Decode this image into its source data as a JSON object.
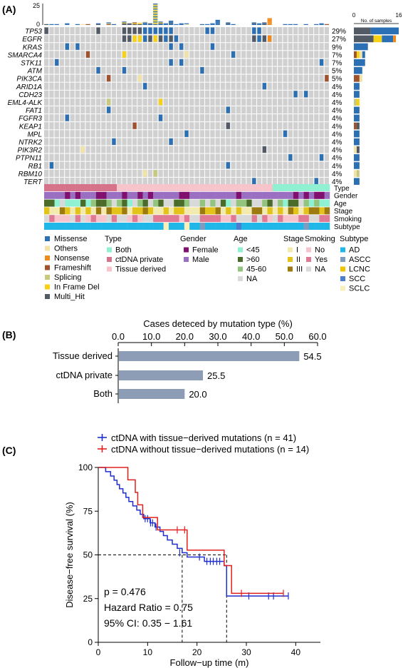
{
  "panel_labels": {
    "a": "(A)",
    "b": "(B)",
    "c": "(C)"
  },
  "oncoprint": {
    "top_axis_ticks": [
      "25",
      "0"
    ],
    "right_axis_title": "No. of samples",
    "right_axis_ticks": [
      "0",
      "16"
    ],
    "genes": [
      "TP53",
      "EGFR",
      "KRAS",
      "SMARCA4",
      "STK11",
      "ATM",
      "PIK3CA",
      "ARID1A",
      "CDH23",
      "EML4-ALK",
      "FAT1",
      "FGFR3",
      "KEAP1",
      "MPL",
      "NTRK2",
      "PIK3R2",
      "PTPN11",
      "RB1",
      "RBM10",
      "TERT"
    ],
    "percentages": [
      "29%",
      "27%",
      "9%",
      "7%",
      "7%",
      "5%",
      "5%",
      "4%",
      "4%",
      "4%",
      "4%",
      "4%",
      "4%",
      "4%",
      "4%",
      "4%",
      "4%",
      "4%",
      "4%",
      "4%"
    ],
    "clinical_tracks": [
      "Type",
      "Gender",
      "Age",
      "Stage",
      "Smoking",
      "Subtype"
    ],
    "mutation_colors": {
      "Missense": "#2b6fb5",
      "Others": "#f2e2a6",
      "Nonsense": "#f08a1c",
      "Frameshift": "#a0522d",
      "Splicing": "#c7c97e",
      "In Frame Del": "#f7d117",
      "Multi_Hit": "#525a66",
      "none": "#d0d0d0"
    }
  },
  "legend": {
    "mutation": {
      "items": [
        {
          "label": "Missense",
          "color": "#2b6fb5"
        },
        {
          "label": "Others",
          "color": "#f2e2a6"
        },
        {
          "label": "Nonsense",
          "color": "#f08a1c"
        },
        {
          "label": "Frameshift",
          "color": "#a0522d"
        },
        {
          "label": "Splicing",
          "color": "#c7c97e"
        },
        {
          "label": "In Frame Del",
          "color": "#f7d117"
        },
        {
          "label": "Multi_Hit",
          "color": "#525a66"
        }
      ]
    },
    "type": {
      "title": "Type",
      "items": [
        {
          "label": "Both",
          "color": "#8ff0d2"
        },
        {
          "label": "ctDNA private",
          "color": "#d6728a"
        },
        {
          "label": "Tissue derived",
          "color": "#f7c4cc"
        }
      ]
    },
    "gender": {
      "title": "Gender",
      "items": [
        {
          "label": "Female",
          "color": "#800f6e"
        },
        {
          "label": "Male",
          "color": "#9a6fc2"
        }
      ]
    },
    "age": {
      "title": "Age",
      "items": [
        {
          "label": "<45",
          "color": "#8ff0d2"
        },
        {
          "label": ">60",
          "color": "#4b6b2a"
        },
        {
          "label": "45-60",
          "color": "#93c47d"
        },
        {
          "label": "NA",
          "color": "#d9d9d9"
        }
      ]
    },
    "stage": {
      "title": "Stage",
      "items": [
        {
          "label": "I",
          "color": "#f3eab0"
        },
        {
          "label": "II",
          "color": "#e3c21a"
        },
        {
          "label": "III",
          "color": "#9c7a10"
        }
      ]
    },
    "smoking": {
      "title": "Smoking",
      "items": [
        {
          "label": "No",
          "color": "#f7c4cc"
        },
        {
          "label": "Yes",
          "color": "#e07a94"
        },
        {
          "label": "NA",
          "color": "#d9d9d9"
        }
      ]
    },
    "subtype": {
      "title": "Subtype",
      "items": [
        {
          "label": "AD",
          "color": "#1fb6e8"
        },
        {
          "label": "ASCC",
          "color": "#7d9cc0"
        },
        {
          "label": "LCNC",
          "color": "#f0c400"
        },
        {
          "label": "SCC",
          "color": "#4a7fd0"
        },
        {
          "label": "SCLC",
          "color": "#f7f0b8"
        }
      ]
    }
  },
  "chart_data": [
    {
      "type": "bar",
      "orientation": "horizontal",
      "title": "Cases deteced by mutation type (%)",
      "categories": [
        "Tissue derived",
        "ctDNA private",
        "Both"
      ],
      "values": [
        54.5,
        25.5,
        20.0
      ],
      "value_labels": [
        "54.5",
        "25.5",
        "20.0"
      ],
      "xticks": [
        "0.0",
        "10.0",
        "20.0",
        "30.0",
        "40.0",
        "50.0",
        "60.0"
      ],
      "xlim": [
        0,
        60
      ],
      "color": "#8d9db5"
    },
    {
      "type": "line",
      "subtype": "kaplan-meier",
      "xlabel": "Follow−up time (m)",
      "ylabel": "Disease−free survival (%)",
      "xticks": [
        "0",
        "10",
        "20",
        "30",
        "40"
      ],
      "yticks": [
        "0",
        "25",
        "50",
        "75",
        "100"
      ],
      "xlim": [
        0,
        45
      ],
      "ylim": [
        0,
        100
      ],
      "median_lines": [
        17,
        26
      ],
      "annotations": [
        "p = 0.476",
        "Hazard Ratio = 0.75",
        "95% CI: 0.35 − 1.61"
      ],
      "series": [
        {
          "name": "ctDNA with tissue−derived mutations (n = 41)",
          "color": "#1f2fcf",
          "steps": [
            [
              0,
              100
            ],
            [
              1.5,
              97.6
            ],
            [
              2.5,
              95.1
            ],
            [
              3.2,
              92.7
            ],
            [
              3.8,
              90.2
            ],
            [
              4.3,
              87.8
            ],
            [
              5,
              85.4
            ],
            [
              5.6,
              82.9
            ],
            [
              6.2,
              80.5
            ],
            [
              7,
              78
            ],
            [
              7.8,
              75.6
            ],
            [
              8.5,
              73.2
            ],
            [
              9.2,
              70.7
            ],
            [
              10.5,
              68.3
            ],
            [
              11.5,
              65.9
            ],
            [
              12.5,
              63.4
            ],
            [
              13.2,
              61
            ],
            [
              14,
              58.5
            ],
            [
              15,
              56.1
            ],
            [
              16,
              53.7
            ],
            [
              17,
              51.2
            ],
            [
              18,
              48.8
            ],
            [
              21.5,
              46.3
            ],
            [
              25.5,
              43.9
            ],
            [
              26,
              26.5
            ],
            [
              38.5,
              26.5
            ]
          ],
          "censors": [
            [
              9.5,
              70.7
            ],
            [
              10,
              70.7
            ],
            [
              10.6,
              68.3
            ],
            [
              11,
              68.3
            ],
            [
              11.7,
              65.9
            ],
            [
              16.5,
              51.2
            ],
            [
              20.5,
              48.8
            ],
            [
              22,
              46.3
            ],
            [
              22.7,
              46.3
            ],
            [
              23.3,
              46.3
            ],
            [
              24,
              46.3
            ],
            [
              24.6,
              46.3
            ],
            [
              30.5,
              26.5
            ],
            [
              34.5,
              26.5
            ],
            [
              35.5,
              26.5
            ],
            [
              38.5,
              26.5
            ]
          ]
        },
        {
          "name": "ctDNA without tissue−derived mutations (n = 14)",
          "color": "#e0201e",
          "steps": [
            [
              0,
              100
            ],
            [
              6,
              92.9
            ],
            [
              7.5,
              85.7
            ],
            [
              8,
              78.6
            ],
            [
              9,
              71.4
            ],
            [
              12,
              64.3
            ],
            [
              18,
              52.7
            ],
            [
              25.5,
              43.9
            ],
            [
              27,
              28
            ],
            [
              37.5,
              28
            ]
          ],
          "censors": [
            [
              16,
              64.3
            ],
            [
              17.5,
              64.3
            ],
            [
              29,
              28
            ],
            [
              37.5,
              28
            ]
          ]
        }
      ]
    }
  ]
}
